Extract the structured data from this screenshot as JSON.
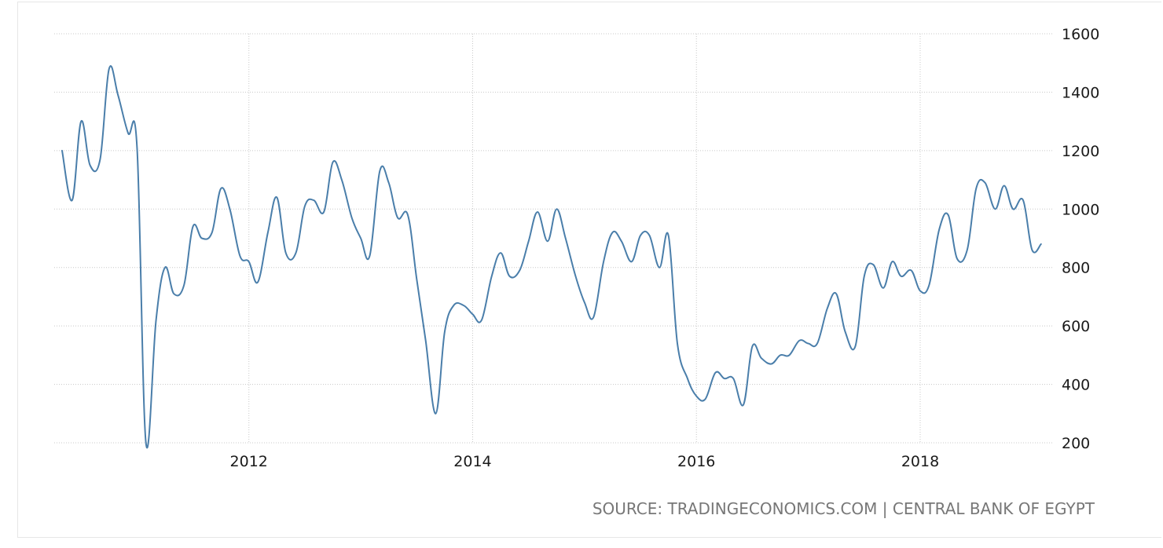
{
  "source_text": "SOURCE: TRADINGECONOMICS.COM | CENTRAL BANK OF EGYPT",
  "colors": {
    "line": "#4a7eaa",
    "grid": "#c8c8c8",
    "source": "#777777",
    "frame": "#e6e6e6"
  },
  "chart_data": {
    "type": "line",
    "title": "",
    "xlabel": "",
    "ylabel": "",
    "xlim": [
      2010.26,
      2019.18
    ],
    "ylim": [
      200,
      1600
    ],
    "x_ticks": [
      2012,
      2014,
      2016,
      2018
    ],
    "x_tick_labels": [
      "2012",
      "2014",
      "2016",
      "2018"
    ],
    "y_ticks": [
      200,
      400,
      600,
      800,
      1000,
      1200,
      1400,
      1600
    ],
    "y_tick_labels": [
      "200",
      "400",
      "600",
      "800",
      "1000",
      "1200",
      "1400",
      "1600"
    ],
    "y_axis_side": "right",
    "grid": true,
    "series": [
      {
        "values": [
          [
            2010.33,
            1200
          ],
          [
            2010.42,
            1030
          ],
          [
            2010.5,
            1300
          ],
          [
            2010.58,
            1150
          ],
          [
            2010.67,
            1170
          ],
          [
            2010.75,
            1480
          ],
          [
            2010.83,
            1390
          ],
          [
            2010.92,
            1260
          ],
          [
            2011.0,
            1210
          ],
          [
            2011.08,
            200
          ],
          [
            2011.17,
            620
          ],
          [
            2011.25,
            800
          ],
          [
            2011.33,
            710
          ],
          [
            2011.42,
            740
          ],
          [
            2011.5,
            940
          ],
          [
            2011.58,
            900
          ],
          [
            2011.67,
            920
          ],
          [
            2011.75,
            1070
          ],
          [
            2011.83,
            1000
          ],
          [
            2011.92,
            840
          ],
          [
            2012.0,
            820
          ],
          [
            2012.08,
            750
          ],
          [
            2012.17,
            920
          ],
          [
            2012.25,
            1040
          ],
          [
            2012.33,
            850
          ],
          [
            2012.42,
            850
          ],
          [
            2012.5,
            1010
          ],
          [
            2012.58,
            1030
          ],
          [
            2012.67,
            990
          ],
          [
            2012.75,
            1160
          ],
          [
            2012.83,
            1100
          ],
          [
            2012.92,
            970
          ],
          [
            2013.0,
            900
          ],
          [
            2013.08,
            840
          ],
          [
            2013.17,
            1130
          ],
          [
            2013.25,
            1090
          ],
          [
            2013.33,
            970
          ],
          [
            2013.42,
            980
          ],
          [
            2013.5,
            760
          ],
          [
            2013.58,
            550
          ],
          [
            2013.67,
            300
          ],
          [
            2013.75,
            580
          ],
          [
            2013.83,
            670
          ],
          [
            2013.92,
            670
          ],
          [
            2014.0,
            640
          ],
          [
            2014.08,
            620
          ],
          [
            2014.17,
            770
          ],
          [
            2014.25,
            850
          ],
          [
            2014.33,
            770
          ],
          [
            2014.42,
            790
          ],
          [
            2014.5,
            890
          ],
          [
            2014.58,
            990
          ],
          [
            2014.67,
            890
          ],
          [
            2014.75,
            1000
          ],
          [
            2014.83,
            900
          ],
          [
            2014.92,
            770
          ],
          [
            2015.0,
            680
          ],
          [
            2015.08,
            630
          ],
          [
            2015.17,
            820
          ],
          [
            2015.25,
            920
          ],
          [
            2015.33,
            890
          ],
          [
            2015.42,
            820
          ],
          [
            2015.5,
            910
          ],
          [
            2015.58,
            910
          ],
          [
            2015.67,
            800
          ],
          [
            2015.75,
            910
          ],
          [
            2015.83,
            540
          ],
          [
            2015.92,
            420
          ],
          [
            2016.0,
            360
          ],
          [
            2016.08,
            350
          ],
          [
            2016.17,
            440
          ],
          [
            2016.25,
            420
          ],
          [
            2016.33,
            420
          ],
          [
            2016.42,
            330
          ],
          [
            2016.5,
            530
          ],
          [
            2016.58,
            490
          ],
          [
            2016.67,
            470
          ],
          [
            2016.75,
            500
          ],
          [
            2016.83,
            500
          ],
          [
            2016.92,
            550
          ],
          [
            2017.0,
            540
          ],
          [
            2017.08,
            540
          ],
          [
            2017.17,
            660
          ],
          [
            2017.25,
            710
          ],
          [
            2017.33,
            580
          ],
          [
            2017.42,
            530
          ],
          [
            2017.5,
            770
          ],
          [
            2017.58,
            810
          ],
          [
            2017.67,
            730
          ],
          [
            2017.75,
            820
          ],
          [
            2017.83,
            770
          ],
          [
            2017.92,
            790
          ],
          [
            2018.0,
            720
          ],
          [
            2018.08,
            740
          ],
          [
            2018.17,
            930
          ],
          [
            2018.25,
            980
          ],
          [
            2018.33,
            830
          ],
          [
            2018.42,
            860
          ],
          [
            2018.5,
            1070
          ],
          [
            2018.58,
            1090
          ],
          [
            2018.67,
            1000
          ],
          [
            2018.75,
            1080
          ],
          [
            2018.83,
            1000
          ],
          [
            2018.92,
            1030
          ],
          [
            2019.0,
            860
          ],
          [
            2019.08,
            880
          ]
        ]
      }
    ]
  }
}
